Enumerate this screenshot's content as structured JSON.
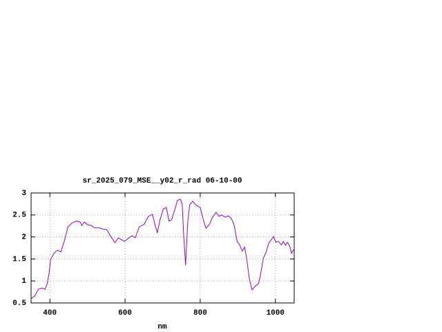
{
  "chart_data": {
    "type": "line",
    "title": "sr_2025_079_MSE__y02_r_rad 06-10-00",
    "x_label": "nm",
    "x": [
      350,
      360,
      369,
      380,
      387,
      393,
      398,
      402,
      411,
      420,
      429,
      439,
      448,
      459,
      470,
      481,
      485,
      492,
      500,
      511,
      518,
      531,
      540,
      551,
      562,
      573,
      582,
      592,
      599,
      610,
      619,
      627,
      638,
      651,
      662,
      673,
      680,
      686,
      693,
      702,
      710,
      717,
      724,
      734,
      739,
      747,
      752,
      756,
      761,
      767,
      772,
      780,
      789,
      800,
      807,
      815,
      824,
      833,
      842,
      850,
      857,
      866,
      875,
      883,
      890,
      898,
      905,
      912,
      918,
      923,
      931,
      938,
      946,
      955,
      960,
      968,
      975,
      982,
      990,
      995,
      1001,
      1008,
      1016,
      1021,
      1027,
      1032,
      1038,
      1043,
      1050
    ],
    "values": [
      0.6,
      0.66,
      0.81,
      0.84,
      0.81,
      0.94,
      1.18,
      1.49,
      1.63,
      1.7,
      1.66,
      1.92,
      2.23,
      2.32,
      2.36,
      2.34,
      2.26,
      2.34,
      2.28,
      2.26,
      2.21,
      2.21,
      2.18,
      2.17,
      2.01,
      1.87,
      1.98,
      1.93,
      1.9,
      1.98,
      2.03,
      1.98,
      2.23,
      2.29,
      2.47,
      2.51,
      2.26,
      2.1,
      2.39,
      2.64,
      2.67,
      2.36,
      2.39,
      2.67,
      2.83,
      2.86,
      2.75,
      2.04,
      1.36,
      2.36,
      2.73,
      2.81,
      2.72,
      2.67,
      2.43,
      2.2,
      2.28,
      2.45,
      2.56,
      2.47,
      2.5,
      2.45,
      2.48,
      2.42,
      2.28,
      1.9,
      1.82,
      1.68,
      1.77,
      1.54,
      1.03,
      0.8,
      0.88,
      0.94,
      1.13,
      1.52,
      1.65,
      1.85,
      1.95,
      2.01,
      1.88,
      1.9,
      1.82,
      1.9,
      1.81,
      1.88,
      1.79,
      1.63,
      1.73
    ],
    "color": "#9400d3",
    "xlim": [
      350,
      1050
    ],
    "xticks": [
      400,
      600,
      800,
      1000
    ],
    "ylim": [
      0.5,
      3
    ],
    "yticks": [
      0.5,
      1,
      1.5,
      2,
      2.5,
      3
    ],
    "grid": true
  }
}
